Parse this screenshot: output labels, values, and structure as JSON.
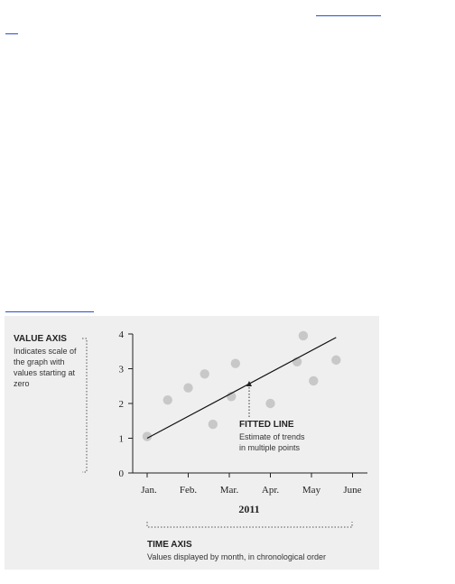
{
  "chart_data": {
    "type": "scatter",
    "xlabel": "2011",
    "x_categories": [
      "Jan.",
      "Feb.",
      "Mar.",
      "Apr.",
      "May",
      "June"
    ],
    "ylim": [
      0,
      4
    ],
    "yticks": [
      "0",
      "1",
      "2",
      "3",
      "4"
    ],
    "points": [
      {
        "x": "Jan.",
        "y": 1.05
      },
      {
        "x": "Jan./Feb.",
        "y": 2.1
      },
      {
        "x": "Feb.",
        "y": 2.45
      },
      {
        "x": "Feb./Mar.",
        "y": 2.85
      },
      {
        "x": "Feb./Mar.",
        "y": 1.4
      },
      {
        "x": "Mar.",
        "y": 2.2
      },
      {
        "x": "Mar.",
        "y": 3.15
      },
      {
        "x": "Apr.",
        "y": 2.0
      },
      {
        "x": "Apr./May",
        "y": 3.2
      },
      {
        "x": "May",
        "y": 3.95
      },
      {
        "x": "May",
        "y": 2.65
      },
      {
        "x": "May/June",
        "y": 3.25
      }
    ],
    "fitted_line": {
      "from": {
        "x": "Jan.",
        "y": 1.0
      },
      "to": {
        "x": "May/June",
        "y": 3.9
      }
    },
    "colors": {
      "points": "#c8c8c8",
      "line": "#111111",
      "panel": "#efefef"
    }
  },
  "annotations": {
    "value_axis": {
      "title": "VALUE AXIS",
      "lines": [
        "Indicates scale of",
        "the graph with",
        "values starting at",
        "zero"
      ]
    },
    "fitted_line": {
      "title": "FITTED LINE",
      "lines": [
        "Estimate of trends",
        "in multiple points"
      ]
    },
    "time_axis": {
      "title": "TIME AXIS",
      "lines": [
        "Values displayed by month, in chronological order"
      ]
    }
  }
}
